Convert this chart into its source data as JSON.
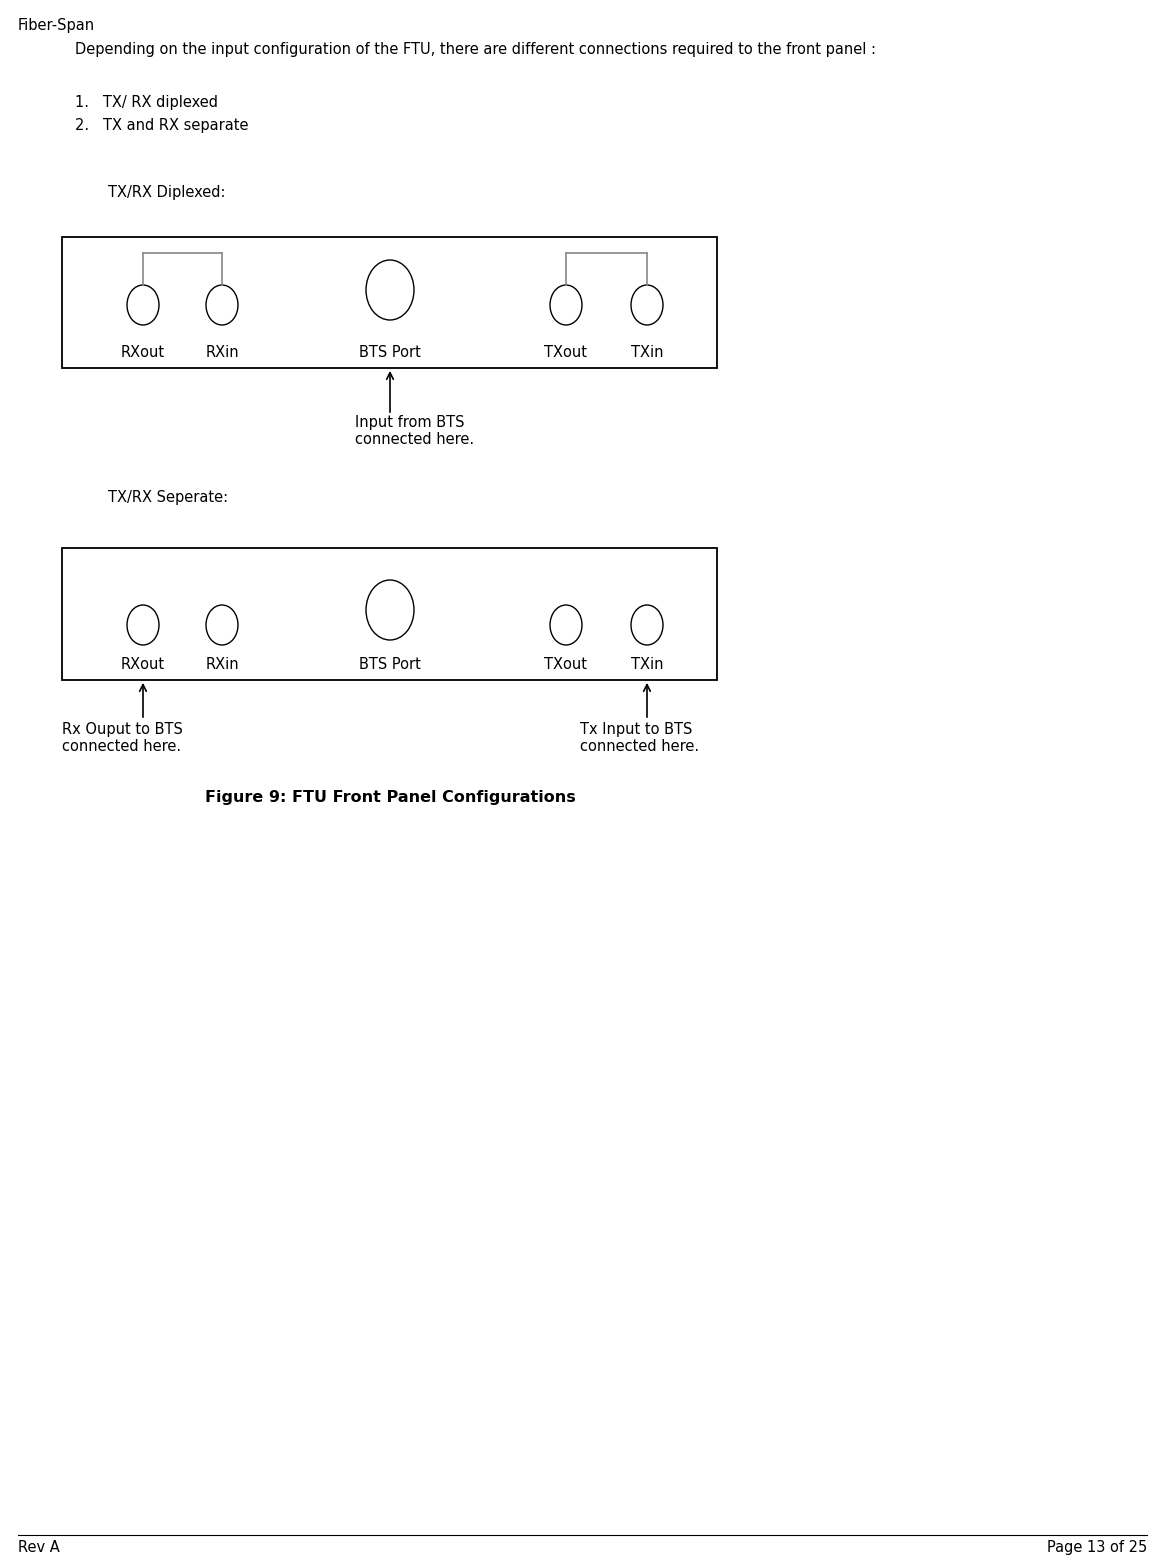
{
  "title": "Fiber-Span",
  "header_text": "Depending on the input configuration of the FTU, there are different connections required to the front panel :",
  "list_item1": "1.   TX/ RX diplexed",
  "list_item2": "2.   TX and RX separate",
  "diplexed_label": "TX/RX Diplexed:",
  "separate_label": "TX/RX Seperate:",
  "figure_caption": "Figure 9: FTU Front Panel Configurations",
  "footer_left": "Rev A",
  "footer_right": "Page 13 of 25",
  "bg_color": "#ffffff",
  "text_color": "#000000",
  "box_color": "#000000",
  "port_labels": [
    "RXout",
    "RXin",
    "BTS Port",
    "TXout",
    "TXin"
  ],
  "dipl_annotation": "Input from BTS\nconnected here.",
  "sep_annotation_rx": "Rx Ouput to BTS\nconnected here.",
  "sep_annotation_tx": "Tx Input to BTS\nconnected here.",
  "dpi": 100,
  "fig_w": 11.65,
  "fig_h": 15.6
}
